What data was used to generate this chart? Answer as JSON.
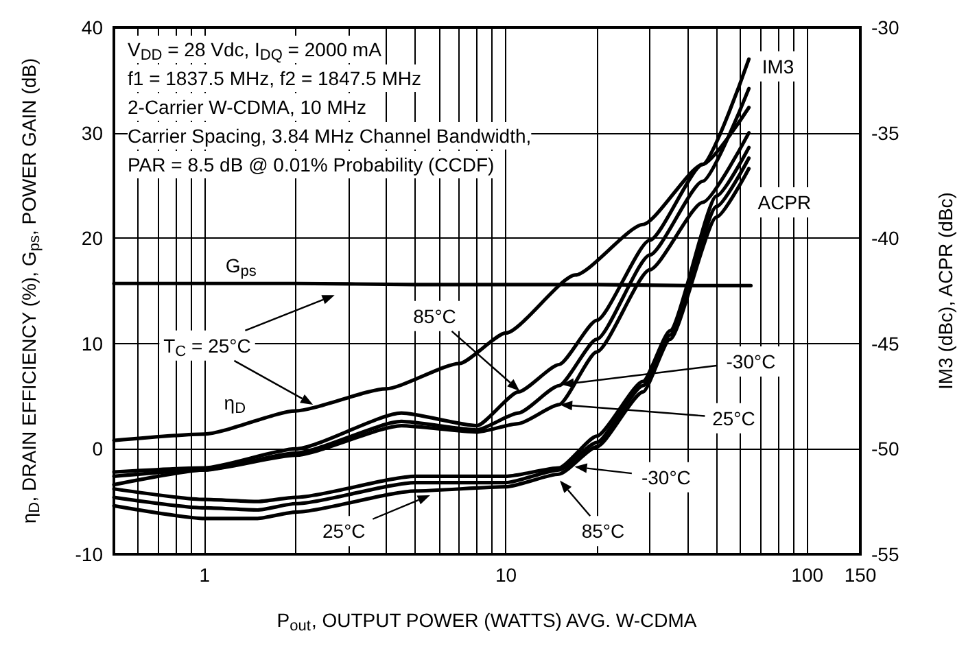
{
  "chart_data": {
    "type": "line",
    "xlabel": "P$_{out}$, OUTPUT POWER (WATTS) AVG. W-CDMA",
    "ylabel": "η$_{D}$, DRAIN EFFICIENCY (%), G$_{ps}$, POWER GAIN (dB)",
    "y2label": "IM3 (dBc), ACPR (dBc)",
    "log": "x",
    "grid": true,
    "marker": "none",
    "line_style": "solid",
    "xlim": [
      0.5,
      150
    ],
    "xticks": [
      {
        "value": 0.6,
        "label": null
      },
      {
        "value": 0.7,
        "label": null
      },
      {
        "value": 0.8,
        "label": null
      },
      {
        "value": 0.9,
        "label": null
      },
      1,
      {
        "value": 2,
        "label": null
      },
      {
        "value": 3,
        "label": null
      },
      {
        "value": 4,
        "label": null
      },
      {
        "value": 5,
        "label": null
      },
      {
        "value": 6,
        "label": null
      },
      {
        "value": 7,
        "label": null
      },
      {
        "value": 8,
        "label": null
      },
      {
        "value": 9,
        "label": null
      },
      10,
      {
        "value": 20,
        "label": null
      },
      {
        "value": 30,
        "label": null
      },
      {
        "value": 40,
        "label": null
      },
      {
        "value": 50,
        "label": null
      },
      {
        "value": 60,
        "label": null
      },
      {
        "value": 70,
        "label": null
      },
      {
        "value": 80,
        "label": null
      },
      {
        "value": 90,
        "label": null
      },
      100,
      150
    ],
    "ylim": [
      -10,
      40
    ],
    "yticks": [
      -10,
      0,
      10,
      20,
      30,
      40
    ],
    "y2lim": [
      -55,
      -30
    ],
    "y2ticks": [
      -55,
      -50,
      -45,
      -40,
      -35,
      -30
    ],
    "series": [
      {
        "color": "#000000",
        "x": [
          0.5,
          1,
          2,
          5,
          10,
          20,
          40,
          65
        ],
        "values": [
          15.7,
          15.7,
          15.7,
          15.6,
          15.6,
          15.6,
          15.5,
          15.5
        ]
      },
      {
        "color": "#000000",
        "x": [
          0.5,
          1,
          2,
          4,
          7,
          10,
          17,
          28.5,
          45,
          64
        ],
        "values": [
          0.8,
          1.4,
          3.6,
          5.7,
          8.1,
          11,
          16.5,
          21.3,
          27,
          32.4
        ]
      },
      {
        "color": "#000000",
        "axis": "y2",
        "x": [
          0.5,
          1,
          2,
          4.5,
          8,
          11,
          15,
          20,
          30,
          45,
          64
        ],
        "values": [
          -51.1,
          -50.9,
          -50,
          -48.3,
          -48.9,
          -47.3,
          -46,
          -43.9,
          -40.1,
          -36.5,
          -31.5
        ]
      },
      {
        "color": "#000000",
        "axis": "y2",
        "x": [
          0.5,
          1,
          2,
          4.5,
          8,
          11,
          15,
          20,
          30,
          45,
          64
        ],
        "values": [
          -51.3,
          -51,
          -50.2,
          -48.7,
          -49.1,
          -48.3,
          -47,
          -44.8,
          -40.8,
          -37.3,
          -32.9
        ]
      },
      {
        "color": "#000000",
        "axis": "y2",
        "x": [
          0.5,
          1,
          2,
          4.5,
          8,
          11,
          15,
          20,
          30,
          45,
          64
        ],
        "values": [
          -51.7,
          -51,
          -50.3,
          -48.9,
          -49.2,
          -48.8,
          -47.9,
          -45.4,
          -41.5,
          -38.3,
          -35
        ]
      },
      {
        "color": "#000000",
        "axis": "y2",
        "x": [
          0.5,
          1,
          1.5,
          2,
          5,
          10,
          15,
          20,
          28.5,
          35,
          50,
          64
        ],
        "values": [
          -51.9,
          -52.4,
          -52.5,
          -52.3,
          -51.3,
          -51.3,
          -50.9,
          -49.4,
          -46.8,
          -44.4,
          -38,
          -35.7
        ]
      },
      {
        "color": "#000000",
        "axis": "y2",
        "x": [
          0.5,
          1,
          1.5,
          2,
          5,
          10,
          15,
          20,
          28.5,
          35,
          50,
          64
        ],
        "values": [
          -52.3,
          -52.8,
          -52.9,
          -52.6,
          -51.6,
          -51.6,
          -51,
          -49.7,
          -47,
          -44.6,
          -38.5,
          -36.2
        ]
      },
      {
        "color": "#000000",
        "axis": "y2",
        "x": [
          0.5,
          1,
          1.5,
          2,
          5,
          10,
          15,
          20,
          28.5,
          35,
          50,
          64
        ],
        "values": [
          -52.7,
          -53.3,
          -53.3,
          -53,
          -52,
          -51.8,
          -51.2,
          -49.9,
          -47.3,
          -44.8,
          -39,
          -36.7
        ]
      }
    ],
    "annotations": [
      "V$_{DD}$ = 28 Vdc, I$_{DQ}$ = 2000 mA",
      "f1 = 1837.5 MHz, f2 = 1847.5 MHz",
      "2-Carrier W-CDMA, 10 MHz",
      "Carrier Spacing, 3.84 MHz Channel Bandwidth,",
      "PAR = 8.5 dB @ 0.01% Probability (CCDF)",
      {
        "text": "G$_{ps}$",
        "x": 1.32,
        "y": 17.4
      },
      {
        "text": "η$_{D}$",
        "x": 1.26,
        "y": 4.4
      },
      "T$_{C}$ = 25°C",
      {
        "text": "85°C",
        "x": 5.8,
        "y": 12.6
      },
      {
        "text": "-30°C",
        "x": 65,
        "y": 8.3
      },
      {
        "text": "25°C",
        "x": 57,
        "y": 2.9
      },
      {
        "text": "-30°C",
        "x": 34,
        "y": -2.7
      },
      {
        "text": "85°C",
        "x": 21,
        "y": -7.8
      },
      {
        "text": "25°C",
        "x": 2.9,
        "y": -7.8
      },
      {
        "text": "IM3",
        "x": 80,
        "y": 36.3
      },
      "ACPR"
    ]
  }
}
